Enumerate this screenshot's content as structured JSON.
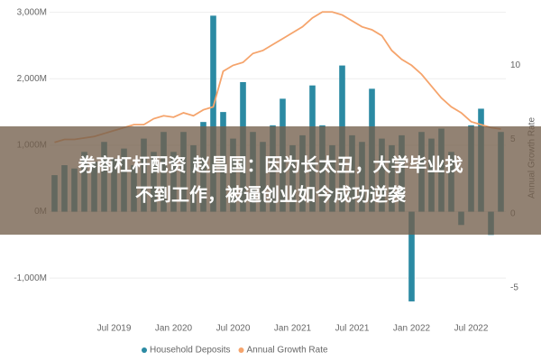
{
  "chart_data": {
    "type": "bar",
    "categories": [
      null,
      null,
      null,
      null,
      null,
      null,
      "Jul 2019",
      null,
      null,
      null,
      null,
      null,
      "Jan 2020",
      null,
      null,
      null,
      null,
      null,
      "Jul 2020",
      null,
      null,
      null,
      null,
      null,
      "Jan 2021",
      null,
      null,
      null,
      null,
      null,
      "Jul 2021",
      null,
      null,
      null,
      null,
      null,
      "Jan 2022",
      null,
      null,
      null,
      null,
      null,
      "Jul 2022",
      null,
      null,
      null
    ],
    "series": [
      {
        "name": "Household Deposits",
        "color": "#2b8aa3",
        "values": [
          550,
          700,
          650,
          900,
          750,
          1050,
          800,
          950,
          700,
          1100,
          900,
          1200,
          900,
          1200,
          1000,
          1350,
          2950,
          1500,
          1100,
          1950,
          1200,
          1050,
          1300,
          1700,
          1000,
          1150,
          1900,
          1300,
          1000,
          2200,
          1150,
          1050,
          1850,
          1100,
          1000,
          1150,
          -1350,
          1200,
          1100,
          1250,
          900,
          -200,
          1300,
          1550,
          -350,
          1200
        ]
      },
      {
        "name": "Annual Growth Rate",
        "color": "#f5a46c",
        "axis": "y2",
        "values": [
          4.8,
          5.0,
          5.0,
          5.1,
          5.2,
          5.4,
          5.6,
          5.8,
          6.0,
          6.0,
          6.4,
          6.6,
          6.5,
          6.8,
          6.6,
          7.0,
          7.2,
          9.6,
          10.0,
          10.2,
          10.8,
          11.0,
          11.4,
          11.8,
          12.2,
          12.6,
          13.2,
          13.6,
          13.6,
          13.4,
          13.0,
          12.6,
          12.4,
          12.0,
          11.0,
          10.4,
          10.0,
          9.4,
          8.6,
          7.8,
          7.2,
          6.8,
          6.2,
          6.0,
          5.8,
          5.7
        ]
      }
    ],
    "ylim": [
      -1500,
      3050
    ],
    "yticks": [
      {
        "value": -1000,
        "label": "-1,000M"
      },
      {
        "value": 0,
        "label": "0M"
      },
      {
        "value": 1000,
        "label": "1,000M"
      },
      {
        "value": 2000,
        "label": "2,000M"
      },
      {
        "value": 3000,
        "label": "3,000M"
      }
    ],
    "y2lim": [
      -6.6,
      13.8
    ],
    "y2ticks": [
      -5,
      0,
      5,
      10
    ],
    "y2_label": "Annual Growth Rate",
    "legend": "bottom"
  },
  "overlay": {
    "lines": [
      "券商杠杆配资 赵昌国：因为长太丑，大学毕业找",
      "不到工作，被逼创业如今成功逆袭"
    ]
  }
}
